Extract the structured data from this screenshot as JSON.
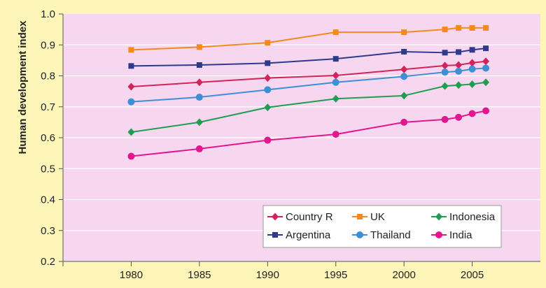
{
  "chart_data": {
    "type": "line",
    "title": "",
    "xlabel": "",
    "ylabel": "Human development index",
    "xlim": [
      1975,
      2010
    ],
    "ylim": [
      0.2,
      1.0
    ],
    "x_ticks": [
      "1980",
      "1985",
      "1990",
      "1995",
      "2000",
      "2005"
    ],
    "y_ticks": [
      "0.2",
      "0.3",
      "0.4",
      "0.5",
      "0.6",
      "0.7",
      "0.8",
      "0.9",
      "1.0"
    ],
    "grid": "horizontal",
    "legend_position": "bottom-right",
    "colors": {
      "plot_background": "#f7d7ef",
      "page_background": "#fdf6b8",
      "gridline": "#ffffff"
    },
    "series": [
      {
        "name": "Country R",
        "color": "#d2245a",
        "marker": "diamond",
        "x": [
          1980,
          1985,
          1990,
          1995,
          2000,
          2003,
          2004,
          2005,
          2006
        ],
        "y": [
          0.765,
          0.779,
          0.793,
          0.801,
          0.821,
          0.833,
          0.835,
          0.842,
          0.847
        ]
      },
      {
        "name": "UK",
        "color": "#f28a1e",
        "marker": "square",
        "x": [
          1980,
          1985,
          1990,
          1995,
          2000,
          2003,
          2004,
          2005,
          2006
        ],
        "y": [
          0.884,
          0.893,
          0.907,
          0.941,
          0.941,
          0.95,
          0.955,
          0.955,
          0.955
        ]
      },
      {
        "name": "Indonesia",
        "color": "#1f9e52",
        "marker": "diamond",
        "x": [
          1980,
          1985,
          1990,
          1995,
          2000,
          2003,
          2004,
          2005,
          2006
        ],
        "y": [
          0.618,
          0.65,
          0.698,
          0.726,
          0.736,
          0.767,
          0.77,
          0.773,
          0.779
        ]
      },
      {
        "name": "Argentina",
        "color": "#2e3a8c",
        "marker": "square",
        "x": [
          1980,
          1985,
          1990,
          1995,
          2000,
          2003,
          2004,
          2005,
          2006
        ],
        "y": [
          0.832,
          0.835,
          0.841,
          0.855,
          0.878,
          0.875,
          0.877,
          0.884,
          0.889
        ]
      },
      {
        "name": "Thailand",
        "color": "#3d8fd6",
        "marker": "circle",
        "x": [
          1980,
          1985,
          1990,
          1995,
          2000,
          2003,
          2004,
          2005,
          2006
        ],
        "y": [
          0.716,
          0.731,
          0.755,
          0.779,
          0.798,
          0.812,
          0.815,
          0.822,
          0.825
        ]
      },
      {
        "name": "India",
        "color": "#e2178f",
        "marker": "circle",
        "x": [
          1980,
          1985,
          1990,
          1995,
          2000,
          2003,
          2004,
          2005,
          2006
        ],
        "y": [
          0.54,
          0.564,
          0.592,
          0.611,
          0.65,
          0.659,
          0.666,
          0.678,
          0.687
        ]
      }
    ]
  }
}
